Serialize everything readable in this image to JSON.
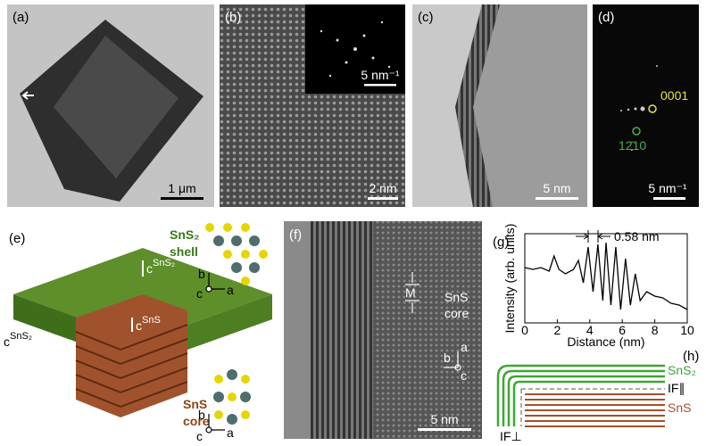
{
  "panels": {
    "a": {
      "label": "(a)",
      "scale_bar": "1 μm"
    },
    "b": {
      "label": "(b)",
      "inset_scale_bar": "5 nm⁻¹",
      "scale_bar": "2 nm"
    },
    "c": {
      "label": "(c)",
      "scale_bar": "5 nm"
    },
    "d": {
      "label": "(d)",
      "spots": [
        "0001",
        "12̄10"
      ],
      "scale_bar": "5 nm⁻¹"
    },
    "e": {
      "label": "(e)",
      "shell": [
        "SnS₂",
        "shell"
      ],
      "core": [
        "SnS",
        "core"
      ],
      "c_shell": {
        "symbol": "c",
        "sup": "SnS₂"
      },
      "c_core": {
        "symbol": "c",
        "sup": "SnS"
      },
      "axes_top": [
        "b",
        "c",
        "a"
      ],
      "axes_bottom": [
        "b",
        "c",
        "a"
      ]
    },
    "f": {
      "label": "(f)",
      "marker": "M",
      "region": [
        "SnS",
        "core"
      ],
      "axes": [
        "a",
        "b",
        "c"
      ],
      "scale_bar": "5 nm"
    },
    "g": {
      "label": "(g)",
      "type": "line",
      "annotation": "0.58 nm",
      "xlabel": "Distance (nm)",
      "ylabel": "Intensity (arb. units)",
      "xlim": [
        0,
        10
      ],
      "ylim": [
        0,
        1
      ],
      "xticks": [
        0,
        2,
        4,
        6,
        8,
        10
      ],
      "x": [
        0,
        0.5,
        1,
        1.5,
        1.8,
        2.1,
        2.5,
        3,
        3.3,
        3.6,
        3.9,
        4.2,
        4.5,
        4.8,
        5,
        5.3,
        5.6,
        5.9,
        6.2,
        6.5,
        6.8,
        7.1,
        7.5,
        8,
        8.5,
        9,
        9.5,
        10
      ],
      "y": [
        0.62,
        0.6,
        0.62,
        0.58,
        0.75,
        0.6,
        0.55,
        0.6,
        0.7,
        0.45,
        0.85,
        0.35,
        0.88,
        0.25,
        0.9,
        0.2,
        0.85,
        0.15,
        0.72,
        0.2,
        0.55,
        0.25,
        0.35,
        0.3,
        0.28,
        0.22,
        0.2,
        0.15
      ]
    },
    "h": {
      "label": "(h)",
      "layers": [
        "SnS₂",
        "IF∥",
        "SnS"
      ],
      "interface": "IF⊥"
    }
  }
}
